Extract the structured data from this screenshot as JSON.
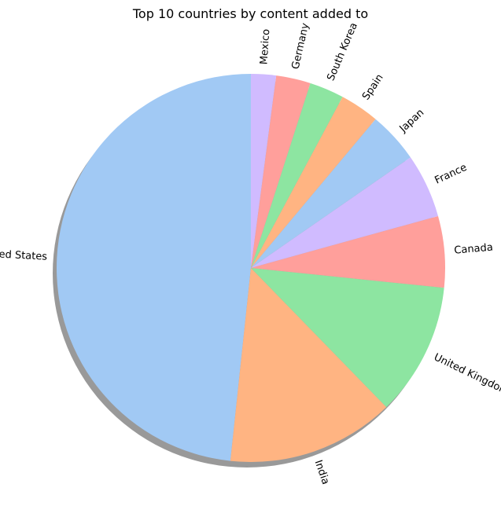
{
  "chart_data": {
    "type": "pie",
    "title": "Top 10 countries by content added to",
    "categories": [
      "United States",
      "India",
      "United Kingdom",
      "Canada",
      "France",
      "Japan",
      "Spain",
      "South Korea",
      "Germany",
      "Mexico"
    ],
    "values": [
      48.8,
      14.1,
      11.2,
      6.0,
      5.4,
      4.3,
      3.3,
      2.9,
      2.9,
      2.1
    ],
    "start_angle_deg": 90,
    "direction": "counterclockwise",
    "shadow": true,
    "colors": [
      "#a1c9f4",
      "#ffb482",
      "#8de5a1",
      "#ff9f9b",
      "#d0bbff",
      "#a1c9f4",
      "#ffb482",
      "#8de5a1",
      "#ff9f9b",
      "#d0bbff"
    ]
  }
}
